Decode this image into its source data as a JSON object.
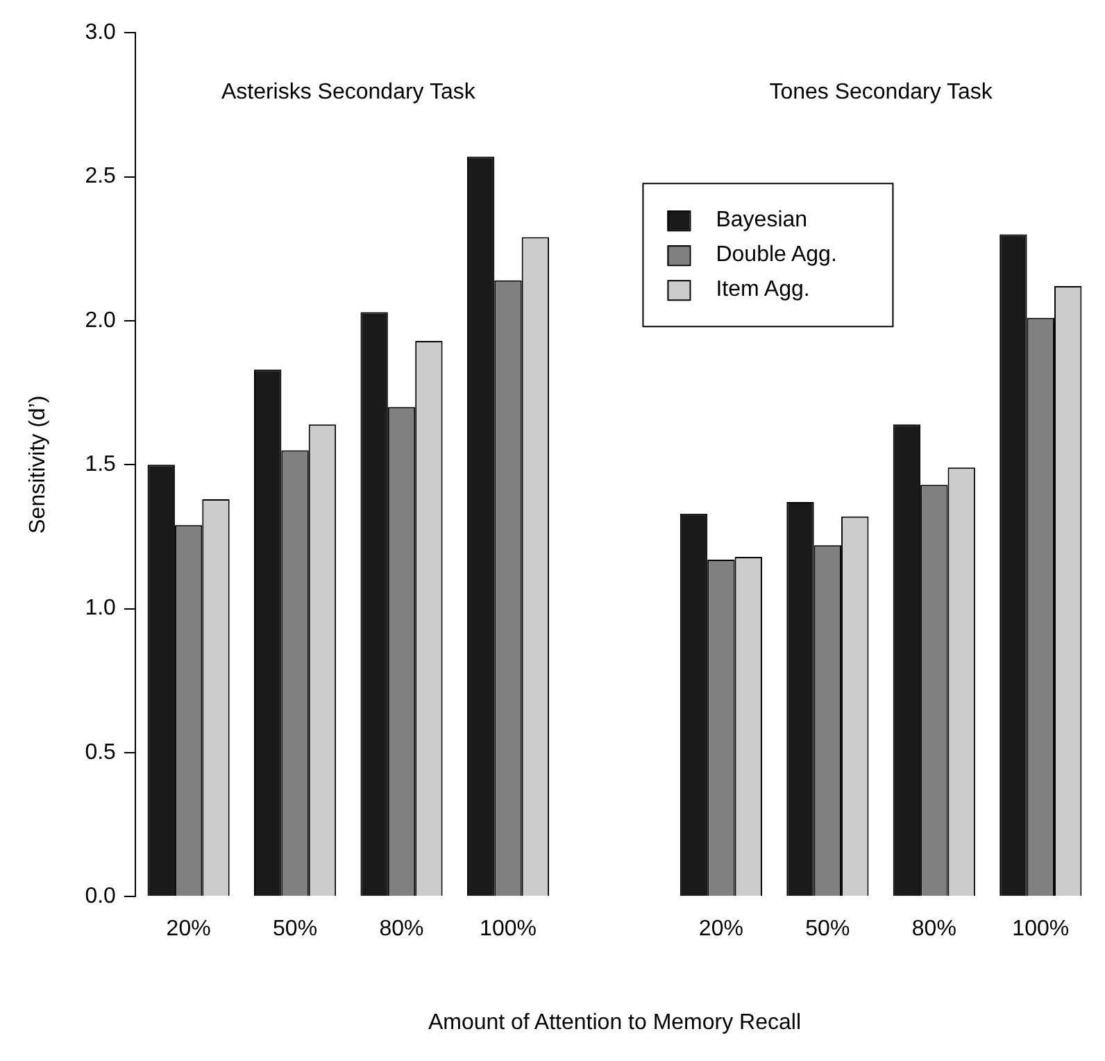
{
  "chart_data": {
    "type": "bar",
    "xlabel": "Amount of Attention to Memory Recall",
    "ylabel": "Sensitivity (d’)",
    "annotations": [
      "Asterisks Secondary Task",
      "Tones Secondary Task"
    ],
    "categories": [
      "20%",
      "50%",
      "80%",
      "100%",
      null,
      "20%",
      "50%",
      "80%",
      "100%"
    ],
    "series": [
      {
        "name": "Bayesian",
        "color": "#1a1a1a",
        "values": [
          1.5,
          1.83,
          2.03,
          2.57,
          null,
          1.33,
          1.37,
          1.64,
          2.3
        ]
      },
      {
        "name": "Double Agg.",
        "color": "#808080",
        "values": [
          1.29,
          1.55,
          1.7,
          2.14,
          null,
          1.17,
          1.22,
          1.43,
          2.01
        ]
      },
      {
        "name": "Item Agg.",
        "color": "#cccccc",
        "values": [
          1.38,
          1.64,
          1.93,
          2.29,
          null,
          1.18,
          1.32,
          1.49,
          2.12
        ]
      }
    ],
    "ylim": [
      0,
      3
    ],
    "yticks": [
      {
        "value": 0,
        "label": "0.0"
      },
      {
        "value": 0.5,
        "label": "0.5"
      },
      {
        "value": 1,
        "label": "1.0"
      },
      {
        "value": 1.5,
        "label": "1.5"
      },
      {
        "value": 2,
        "label": "2.0"
      },
      {
        "value": 2.5,
        "label": "2.5"
      },
      {
        "value": 3,
        "label": "3.0"
      }
    ],
    "grid": false,
    "legend": "top"
  }
}
